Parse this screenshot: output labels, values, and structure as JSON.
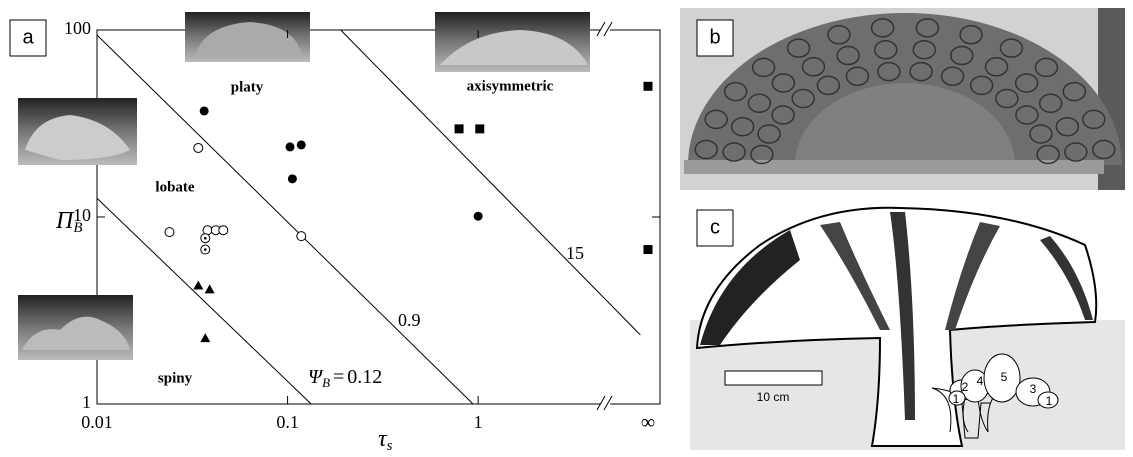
{
  "chart_data": {
    "type": "scatter",
    "x_label": {
      "symbol": "τ",
      "subscript": "s"
    },
    "y_label": {
      "symbol": "Π",
      "subscript": "B"
    },
    "log_x": true,
    "log_y": true,
    "xlim": [
      0.01,
      9
    ],
    "ylim": [
      1,
      100
    ],
    "xticks": [
      0.01,
      0.1,
      1
    ],
    "yticks": [
      1,
      10,
      100
    ],
    "x_infinity_label": "∞",
    "color": "#000000",
    "series": [
      {
        "marker": "open-circle",
        "x": [
          0.024,
          0.034,
          0.038,
          0.042,
          0.046,
          0.118
        ],
        "values": [
          8.3,
          23.4,
          8.5,
          8.5,
          8.5,
          7.9
        ]
      },
      {
        "marker": "dotted-circle",
        "x": [
          0.037,
          0.037
        ],
        "values": [
          7.7,
          6.7
        ]
      },
      {
        "marker": "filled-circle",
        "x": [
          0.0365,
          0.103,
          0.118,
          0.106,
          1.0
        ],
        "values": [
          36.9,
          23.7,
          24.3,
          16,
          10.1
        ]
      },
      {
        "marker": "triangle",
        "x": [
          0.034,
          0.039,
          0.037
        ],
        "values": [
          4.3,
          4.1,
          2.25
        ]
      },
      {
        "marker": "square",
        "x": [
          0.794,
          1.02
        ],
        "values": [
          29.6,
          29.6
        ]
      },
      {
        "marker": "square",
        "x_infinite": true,
        "values": [
          50,
          6.7
        ]
      }
    ],
    "psi_symbol": "Ψ",
    "psi_subscript": "B",
    "psi_equals": "=",
    "lines": [
      {
        "psi": 0.12,
        "x": [
          0.01,
          0.133
        ],
        "y": [
          12.6,
          1
        ]
      },
      {
        "psi": 0.9,
        "x": [
          0.01,
          0.94
        ],
        "y": [
          94,
          1
        ]
      },
      {
        "psi": 15,
        "x": [
          0.19,
          7.1
        ],
        "y": [
          100,
          2.34
        ]
      }
    ],
    "region_labels": {
      "platy": "platy",
      "axisymmetric": "axisymmetric",
      "lobate": "lobate",
      "spiny": "spiny"
    }
  },
  "panels": {
    "a": "a",
    "b": "b",
    "c": "c"
  },
  "panel_c": {
    "scale_label": "10 cm",
    "zone_labels": [
      "1",
      "2",
      "4",
      "5",
      "3",
      "1"
    ]
  }
}
